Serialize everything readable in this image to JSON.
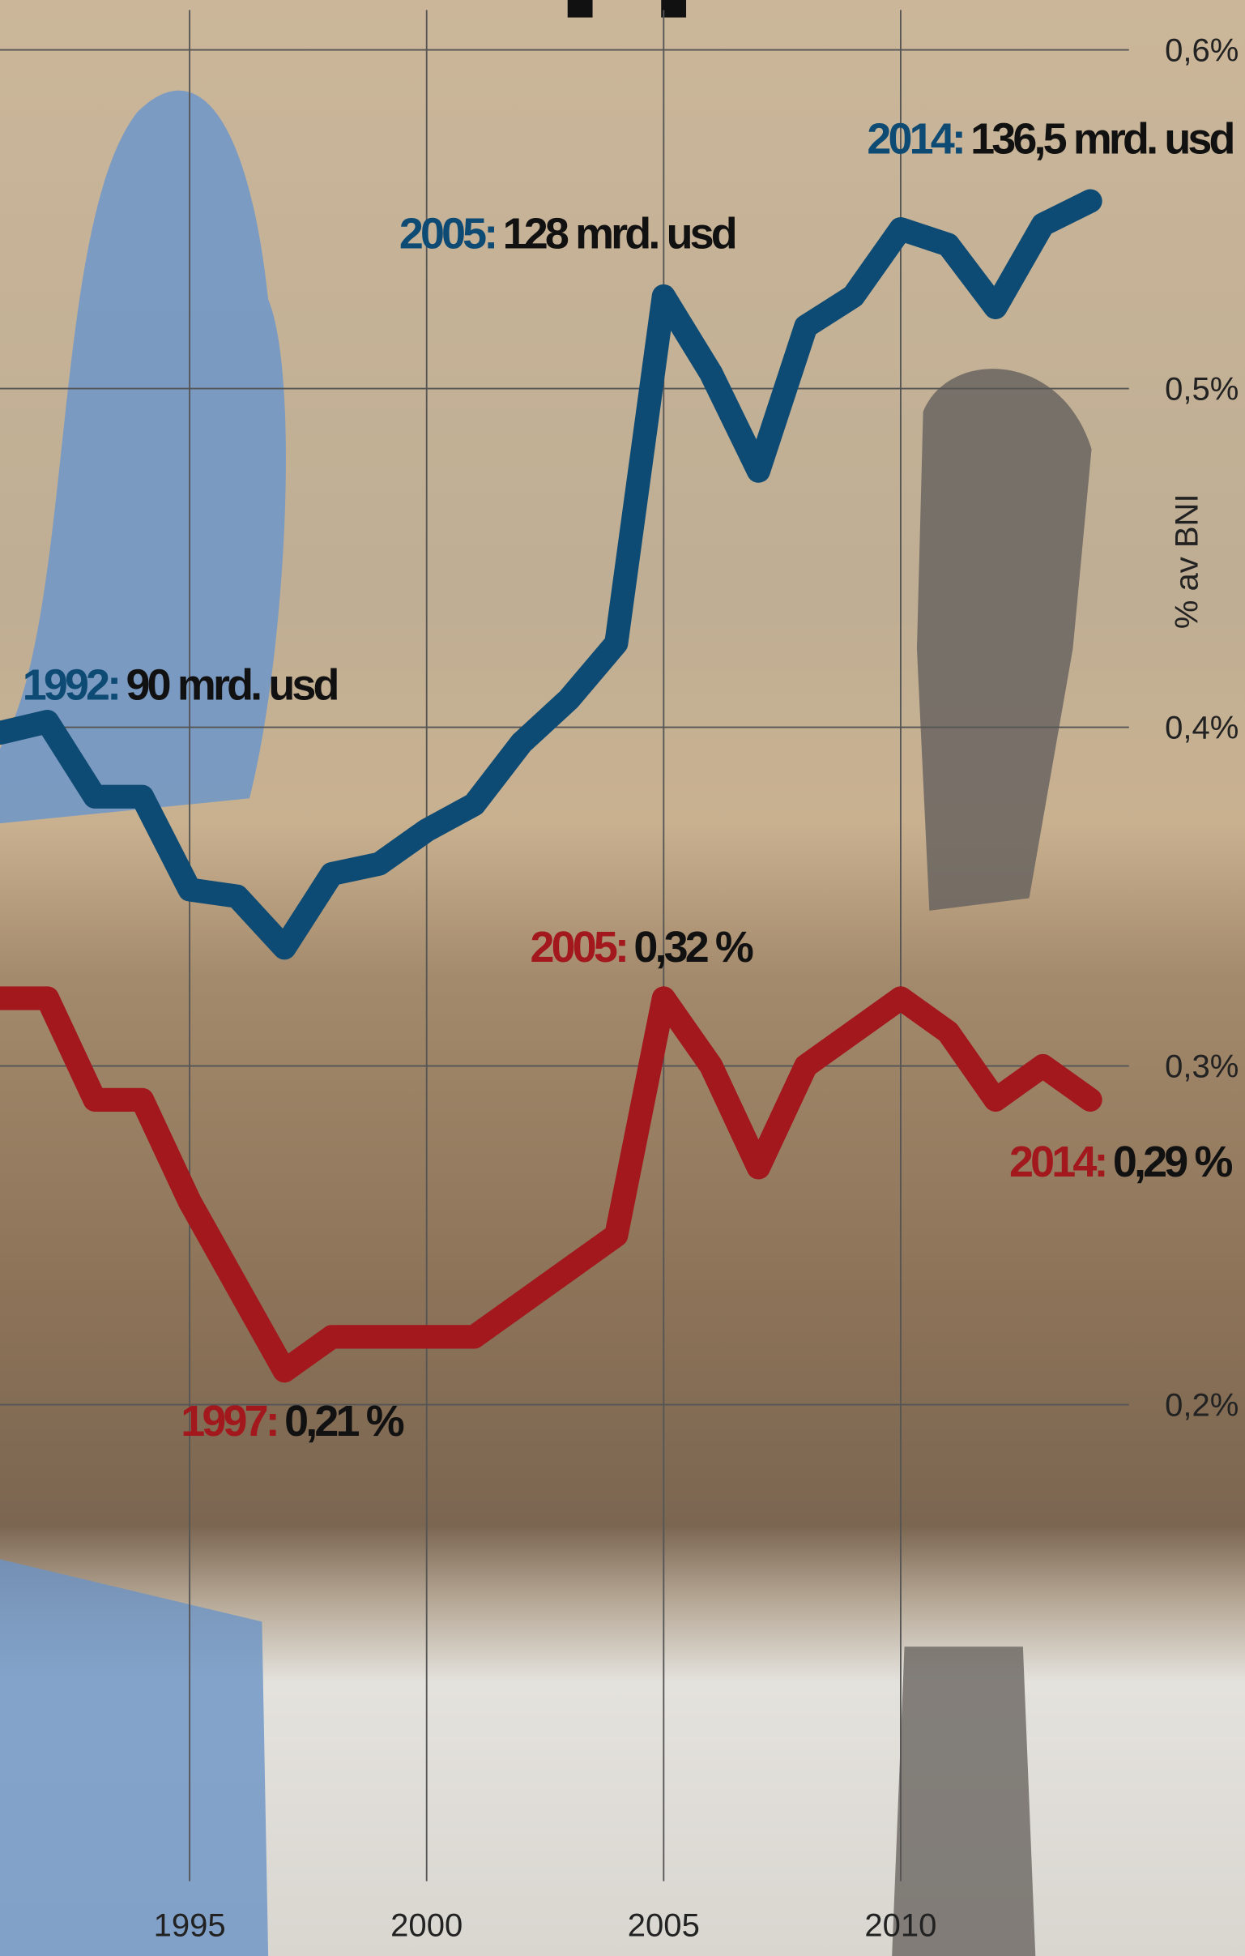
{
  "chart_data": {
    "type": "line",
    "x": [
      1991,
      1992,
      1993,
      1994,
      1995,
      1996,
      1997,
      1998,
      1999,
      2000,
      2001,
      2002,
      2003,
      2004,
      2005,
      2006,
      2007,
      2008,
      2009,
      2010,
      2011,
      2012,
      2013,
      2014
    ],
    "xlim": [
      1991,
      2017
    ],
    "xticks": [
      1995,
      2000,
      2005,
      2010
    ],
    "ylim": [
      0.2,
      0.6
    ],
    "yticks": [
      {
        "value": 0.6,
        "label": "0,6%"
      },
      {
        "value": 0.5,
        "label": "0,5%"
      },
      {
        "value": 0.4,
        "label": "0,4%"
      },
      {
        "value": 0.3,
        "label": "0,3%"
      },
      {
        "value": 0.2,
        "label": "0,2%"
      }
    ],
    "y_label": "% av BNI",
    "y2lim": [
      29,
      150
    ],
    "grid": true,
    "series": [
      {
        "color": "#0e4b74",
        "axis": "y2",
        "values": [
          89,
          90,
          83.3,
          83.3,
          75,
          74.4,
          69.8,
          76.4,
          77.3,
          80.3,
          82.6,
          88.1,
          92,
          97,
          128,
          121.1,
          112.4,
          125.3,
          128,
          134,
          132.6,
          127,
          134.4,
          136.5
        ]
      },
      {
        "color": "#a3181d",
        "values": [
          0.32,
          0.32,
          0.29,
          0.29,
          0.26,
          0.235,
          0.21,
          0.22,
          0.22,
          0.22,
          0.22,
          0.23,
          0.24,
          0.25,
          0.32,
          0.3,
          0.27,
          0.3,
          0.31,
          0.32,
          0.31,
          0.29,
          0.3,
          0.29
        ]
      }
    ],
    "annotations": [
      {
        "year": "1992:",
        "text": "90 mrd. usd"
      },
      {
        "year": "2005:",
        "text": "128 mrd. usd"
      },
      {
        "year": "2014:",
        "text": "136,5 mrd. usd"
      },
      {
        "year": "2005:",
        "text": "0,32 %"
      },
      {
        "year": "2014:",
        "text": "0,29 %"
      },
      {
        "year": "1997:",
        "text": "0,21 %"
      }
    ]
  }
}
